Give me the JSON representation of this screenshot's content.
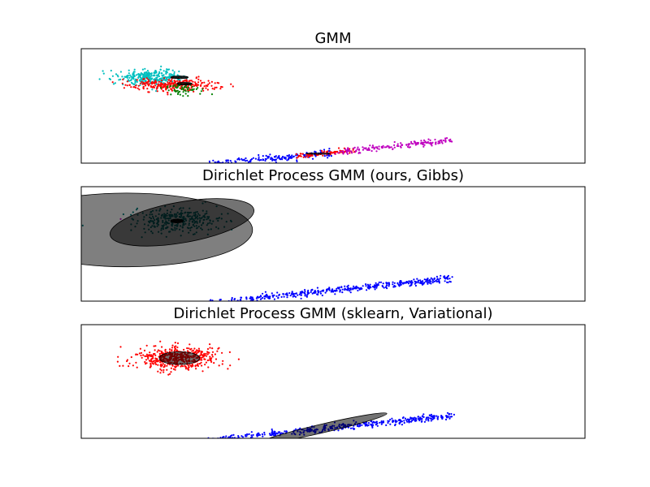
{
  "chart_data": [
    {
      "type": "scatter",
      "title": "GMM",
      "xlabel": "",
      "ylabel": "",
      "xlim": [
        -10,
        10
      ],
      "ylim": [
        -3,
        6
      ],
      "ticks_visible": false,
      "grid": false,
      "series": [
        {
          "color": "#0000ff",
          "cluster": "diagonal",
          "x_range": [
            -5.0,
            0.0
          ],
          "slope": 0.2,
          "intercept": -2.15,
          "spread": 0.15,
          "count": 180
        },
        {
          "color": "#ff0000",
          "cluster": "diagonal",
          "x_range": [
            -1.5,
            0.8
          ],
          "slope": 0.2,
          "intercept": -2.15,
          "spread": 0.1,
          "count": 90
        },
        {
          "color": "#bf00bf",
          "cluster": "diagonal",
          "x_range": [
            0.0,
            4.7
          ],
          "slope": 0.2,
          "intercept": -2.15,
          "spread": 0.12,
          "count": 170
        },
        {
          "color": "#00bfbf",
          "cluster": "blob",
          "center": [
            -7.2,
            3.75
          ],
          "sd": [
            0.65,
            0.32
          ],
          "count": 300
        },
        {
          "color": "#ff0000",
          "cluster": "blob",
          "center": [
            -6.3,
            3.15
          ],
          "sd": [
            0.9,
            0.25
          ],
          "count": 260
        },
        {
          "color": "#008000",
          "cluster": "blob",
          "center": [
            -5.9,
            2.8
          ],
          "sd": [
            0.45,
            0.25
          ],
          "count": 60
        }
      ],
      "ellipses": [
        {
          "cx": -6.1,
          "cy": 3.75,
          "rx": 0.35,
          "ry": 0.1,
          "angle": 0,
          "fill": "#000000",
          "opacity": 0.85
        },
        {
          "cx": -5.9,
          "cy": 3.25,
          "rx": 0.3,
          "ry": 0.1,
          "angle": 0,
          "fill": "#000000",
          "opacity": 0.85
        },
        {
          "cx": -0.6,
          "cy": -2.25,
          "rx": 0.5,
          "ry": 0.05,
          "angle": 0,
          "fill": "#000000",
          "opacity": 0.6
        }
      ]
    },
    {
      "type": "scatter",
      "title": "Dirichlet Process GMM (ours, Gibbs)",
      "xlabel": "",
      "ylabel": "",
      "xlim": [
        -10,
        10
      ],
      "ylim": [
        -3,
        6
      ],
      "ticks_visible": false,
      "grid": false,
      "series": [
        {
          "color": "#0000ff",
          "cluster": "diagonal",
          "x_range": [
            -5.0,
            4.7
          ],
          "slope": 0.2,
          "intercept": -2.15,
          "spread": 0.13,
          "count": 420
        },
        {
          "color": "#008080",
          "cluster": "blob",
          "center": [
            -6.2,
            3.35
          ],
          "sd": [
            0.85,
            0.45
          ],
          "count": 330
        },
        {
          "color": "#bf00bf",
          "cluster": "blob",
          "center": [
            -8.4,
            3.7
          ],
          "sd": [
            0.1,
            0.1
          ],
          "count": 1
        }
      ],
      "ellipses": [
        {
          "cx": -8.2,
          "cy": 2.6,
          "rx": 5.0,
          "ry": 2.9,
          "angle": 0,
          "fill": "#000000",
          "opacity": 0.5
        },
        {
          "cx": -6.0,
          "cy": 3.2,
          "rx": 2.9,
          "ry": 1.6,
          "angle": 10,
          "fill": "#000000",
          "opacity": 0.55
        },
        {
          "cx": -6.2,
          "cy": 3.3,
          "rx": 0.25,
          "ry": 0.15,
          "angle": 0,
          "fill": "#000000",
          "opacity": 0.95
        }
      ]
    },
    {
      "type": "scatter",
      "title": "Dirichlet Process GMM (sklearn, Variational)",
      "xlabel": "",
      "ylabel": "",
      "xlim": [
        -10,
        10
      ],
      "ylim": [
        -3,
        6
      ],
      "ticks_visible": false,
      "grid": false,
      "series": [
        {
          "color": "#0000ff",
          "cluster": "diagonal",
          "x_range": [
            -5.0,
            4.7
          ],
          "slope": 0.2,
          "intercept": -2.15,
          "spread": 0.13,
          "count": 420
        },
        {
          "color": "#ff0000",
          "cluster": "blob",
          "center": [
            -6.2,
            3.35
          ],
          "sd": [
            0.9,
            0.45
          ],
          "count": 480
        }
      ],
      "ellipses": [
        {
          "cx": -6.1,
          "cy": 3.35,
          "rx": 0.8,
          "ry": 0.5,
          "angle": 0,
          "fill": "#000000",
          "opacity": 0.55
        },
        {
          "cx": -0.4,
          "cy": -2.2,
          "rx": 2.6,
          "ry": 0.35,
          "angle": 13,
          "fill": "#000000",
          "opacity": 0.55
        }
      ]
    }
  ]
}
